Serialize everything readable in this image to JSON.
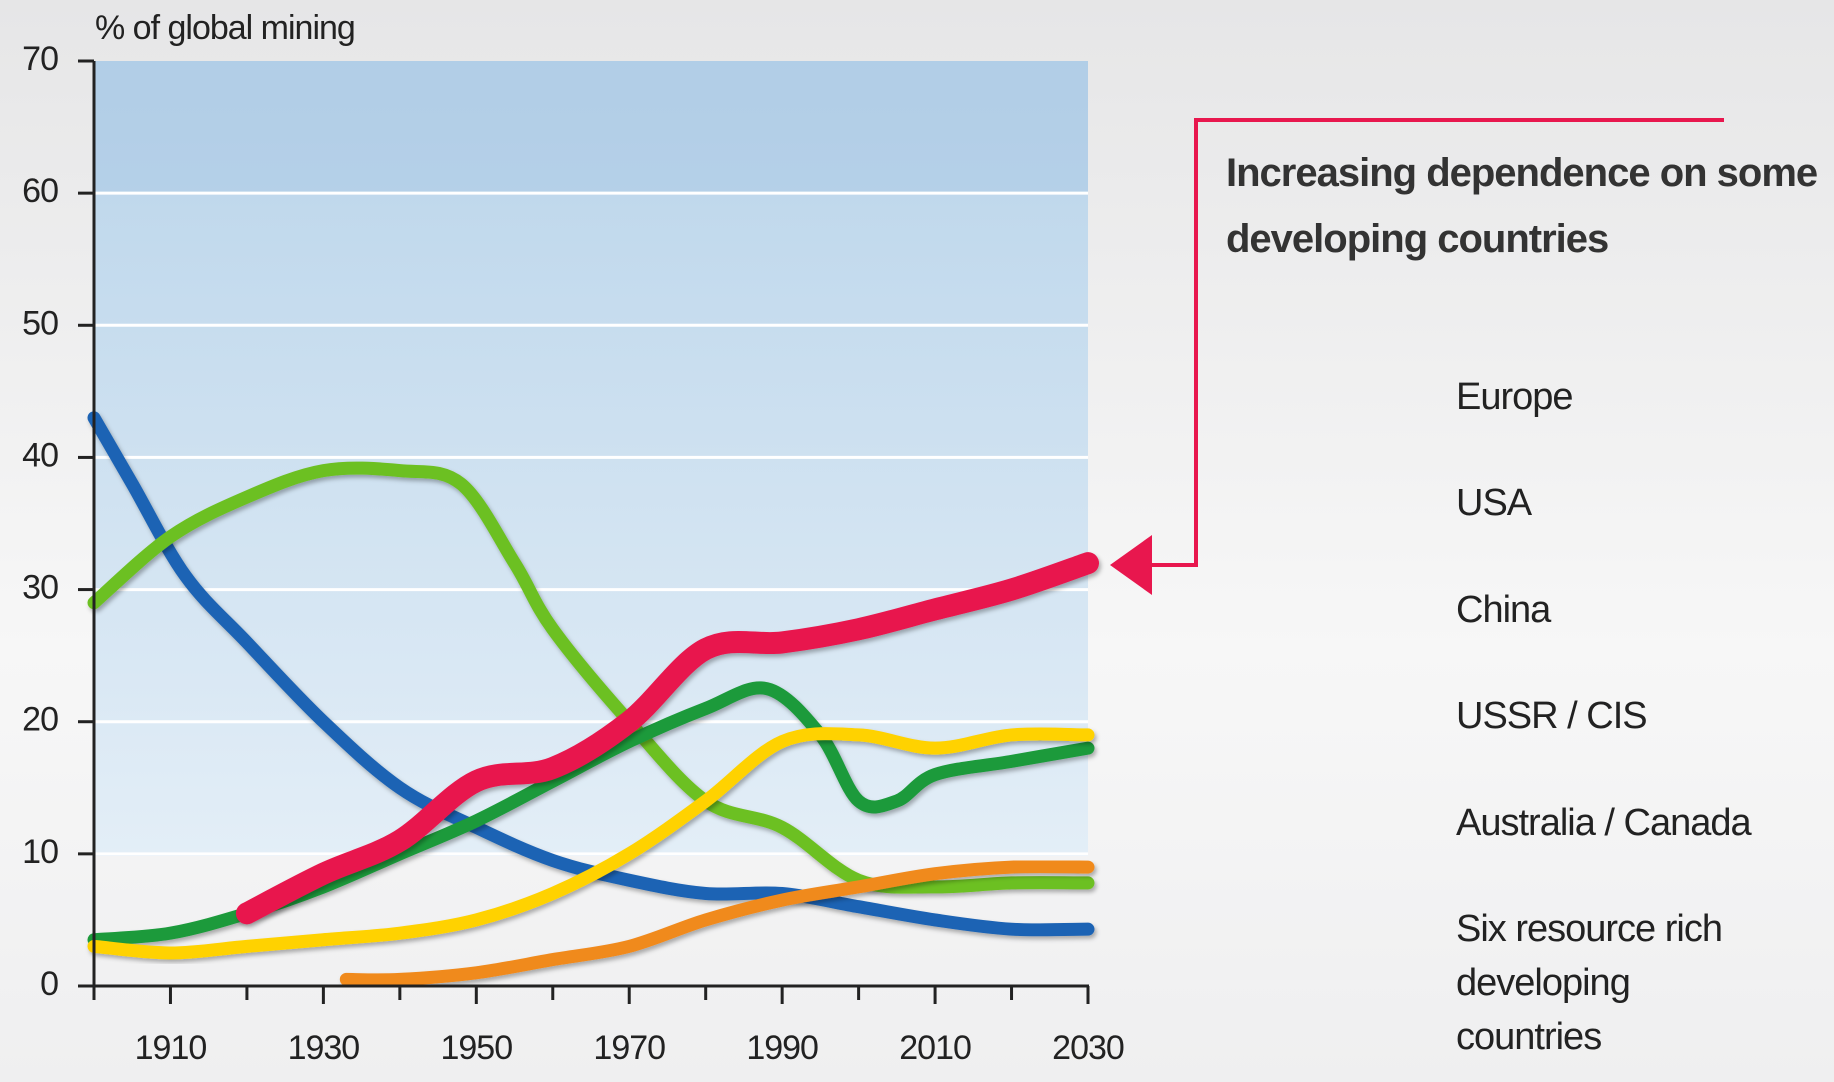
{
  "chart_data": {
    "type": "line",
    "y_label": "% of global mining",
    "annotation": "Increasing dependence on some developing countries",
    "xlim": [
      1900,
      2030
    ],
    "xticks": [
      1910,
      1930,
      1950,
      1970,
      1990,
      2010,
      2030
    ],
    "xminorticks": [
      1900,
      1920,
      1940,
      1960,
      1980,
      2000,
      2020
    ],
    "ylim": [
      0,
      70
    ],
    "yticks": [
      0,
      10,
      20,
      30,
      40,
      50,
      60,
      70
    ],
    "grid": true,
    "legend": "right",
    "series": [
      {
        "name": "Europe",
        "color": "#1e64b4",
        "x": [
          1900,
          1905,
          1912,
          1920,
          1930,
          1940,
          1950,
          1960,
          1970,
          1980,
          1990,
          2000,
          2010,
          2020,
          2030
        ],
        "values": [
          43,
          38,
          31,
          26,
          20,
          15,
          12,
          9.5,
          8,
          7,
          7,
          6,
          5,
          4.3,
          4.3
        ]
      },
      {
        "name": "USA",
        "color": "#6cc024",
        "x": [
          1900,
          1910,
          1920,
          1930,
          1940,
          1948,
          1955,
          1960,
          1970,
          1980,
          1990,
          2000,
          2010,
          2020,
          2030
        ],
        "values": [
          29,
          34,
          37,
          39,
          39,
          38,
          32,
          27,
          20,
          14,
          12,
          8,
          7.5,
          7.8,
          7.8
        ]
      },
      {
        "name": "China",
        "color": "#f08a1e",
        "x": [
          1933,
          1940,
          1950,
          1960,
          1970,
          1980,
          1990,
          2000,
          2010,
          2020,
          2030
        ],
        "values": [
          0.5,
          0.5,
          1,
          2,
          3,
          5,
          6.5,
          7.5,
          8.5,
          9,
          9
        ]
      },
      {
        "name": "USSR / CIS",
        "color": "#1a9a3a",
        "x": [
          1900,
          1910,
          1920,
          1930,
          1940,
          1950,
          1960,
          1970,
          1980,
          1988,
          1995,
          2000,
          2005,
          2010,
          2020,
          2030
        ],
        "values": [
          3.5,
          4,
          5.5,
          7.5,
          10,
          12.5,
          15.5,
          18.5,
          21,
          22.5,
          19,
          14,
          14,
          16,
          17,
          18
        ]
      },
      {
        "name": "Australia / Canada",
        "color": "#ffd200",
        "x": [
          1900,
          1910,
          1920,
          1930,
          1940,
          1950,
          1960,
          1970,
          1980,
          1990,
          2000,
          2010,
          2020,
          2030
        ],
        "values": [
          3,
          2.5,
          3,
          3.5,
          4,
          5,
          7,
          10,
          14,
          18.5,
          19,
          18,
          19,
          19
        ]
      },
      {
        "name": "Six resource rich developing countries",
        "color": "#e8174e",
        "x": [
          1920,
          1930,
          1940,
          1950,
          1960,
          1970,
          1980,
          1990,
          2000,
          2010,
          2020,
          2030
        ],
        "values": [
          5.5,
          8.5,
          11,
          15.5,
          16.5,
          20,
          25.5,
          26,
          27,
          28.5,
          30,
          32
        ]
      }
    ]
  }
}
